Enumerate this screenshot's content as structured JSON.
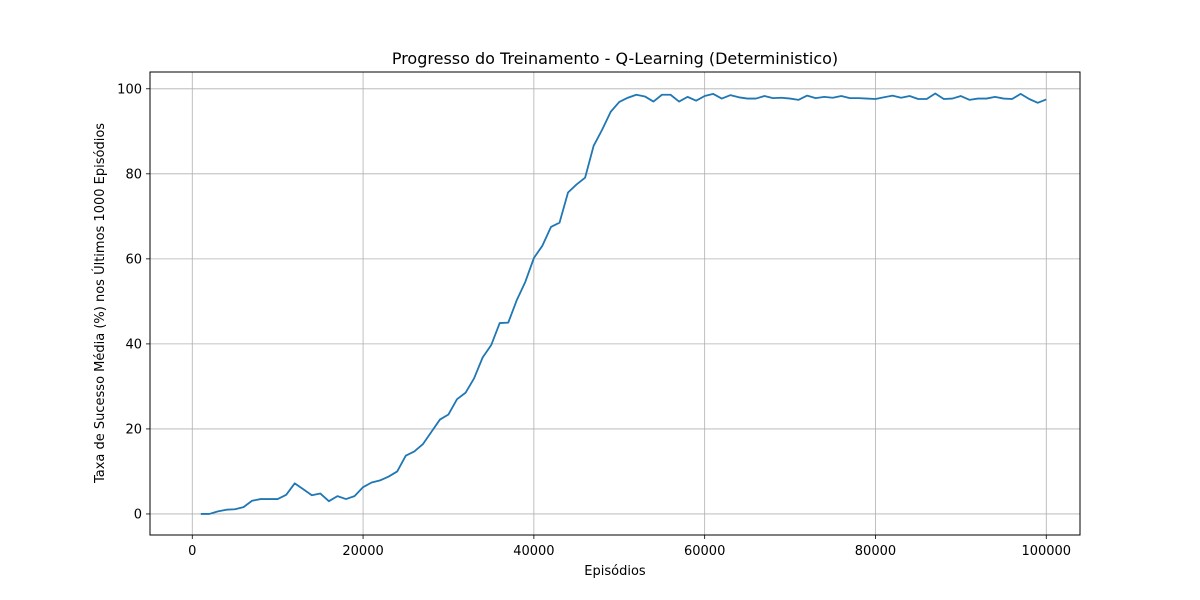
{
  "chart_data": {
    "type": "line",
    "title": "Progresso do Treinamento - Q-Learning (Deterministico)",
    "xlabel": "Episódios",
    "ylabel": "Taxa de Sucesso Média (%) nos Últimos 1000 Episódios",
    "xlim": [
      -4950,
      103950
    ],
    "ylim": [
      -4.95,
      103.95
    ],
    "xticks": [
      0,
      20000,
      40000,
      60000,
      80000,
      100000
    ],
    "yticks": [
      0,
      20,
      40,
      60,
      80,
      100
    ],
    "grid": true,
    "series": [
      {
        "color": "#1f77b4",
        "x": [
          1000,
          2000,
          3000,
          4000,
          5000,
          6000,
          7000,
          8000,
          9000,
          10000,
          11000,
          12000,
          13000,
          14000,
          15000,
          16000,
          17000,
          18000,
          19000,
          20000,
          21000,
          22000,
          23000,
          24000,
          25000,
          26000,
          27000,
          28000,
          29000,
          30000,
          31000,
          32000,
          33000,
          34000,
          35000,
          36000,
          37000,
          38000,
          39000,
          40000,
          41000,
          42000,
          43000,
          44000,
          45000,
          46000,
          47000,
          48000,
          49000,
          50000,
          51000,
          52000,
          53000,
          54000,
          55000,
          56000,
          57000,
          58000,
          59000,
          60000,
          61000,
          62000,
          63000,
          64000,
          65000,
          66000,
          67000,
          68000,
          69000,
          70000,
          71000,
          72000,
          73000,
          74000,
          75000,
          76000,
          77000,
          78000,
          79000,
          80000,
          81000,
          82000,
          83000,
          84000,
          85000,
          86000,
          87000,
          88000,
          89000,
          90000,
          91000,
          92000,
          93000,
          94000,
          95000,
          96000,
          97000,
          98000,
          99000,
          100000
        ],
        "y": [
          0.0,
          0.0,
          0.6,
          1.0,
          1.1,
          1.6,
          3.1,
          3.5,
          3.5,
          3.5,
          4.5,
          7.2,
          5.8,
          4.4,
          4.8,
          3.0,
          4.2,
          3.5,
          4.2,
          6.3,
          7.4,
          7.9,
          8.8,
          10.0,
          13.7,
          14.7,
          16.4,
          19.3,
          22.2,
          23.4,
          27.0,
          28.5,
          31.9,
          36.8,
          39.7,
          44.9,
          45.0,
          50.3,
          54.6,
          60.2,
          63.1,
          67.5,
          68.5,
          75.6,
          77.5,
          79.1,
          86.6,
          90.4,
          94.6,
          96.9,
          97.9,
          98.6,
          98.2,
          97.0,
          98.6,
          98.6,
          97.0,
          98.1,
          97.2,
          98.3,
          98.8,
          97.7,
          98.5,
          98.0,
          97.7,
          97.7,
          98.3,
          97.8,
          97.9,
          97.7,
          97.4,
          98.4,
          97.8,
          98.1,
          97.9,
          98.3,
          97.8,
          97.8,
          97.7,
          97.6,
          98.0,
          98.4,
          97.9,
          98.3,
          97.6,
          97.6,
          98.9,
          97.6,
          97.7,
          98.3,
          97.4,
          97.7,
          97.7,
          98.1,
          97.7,
          97.6,
          98.8,
          97.6,
          96.7,
          97.5
        ]
      }
    ]
  }
}
